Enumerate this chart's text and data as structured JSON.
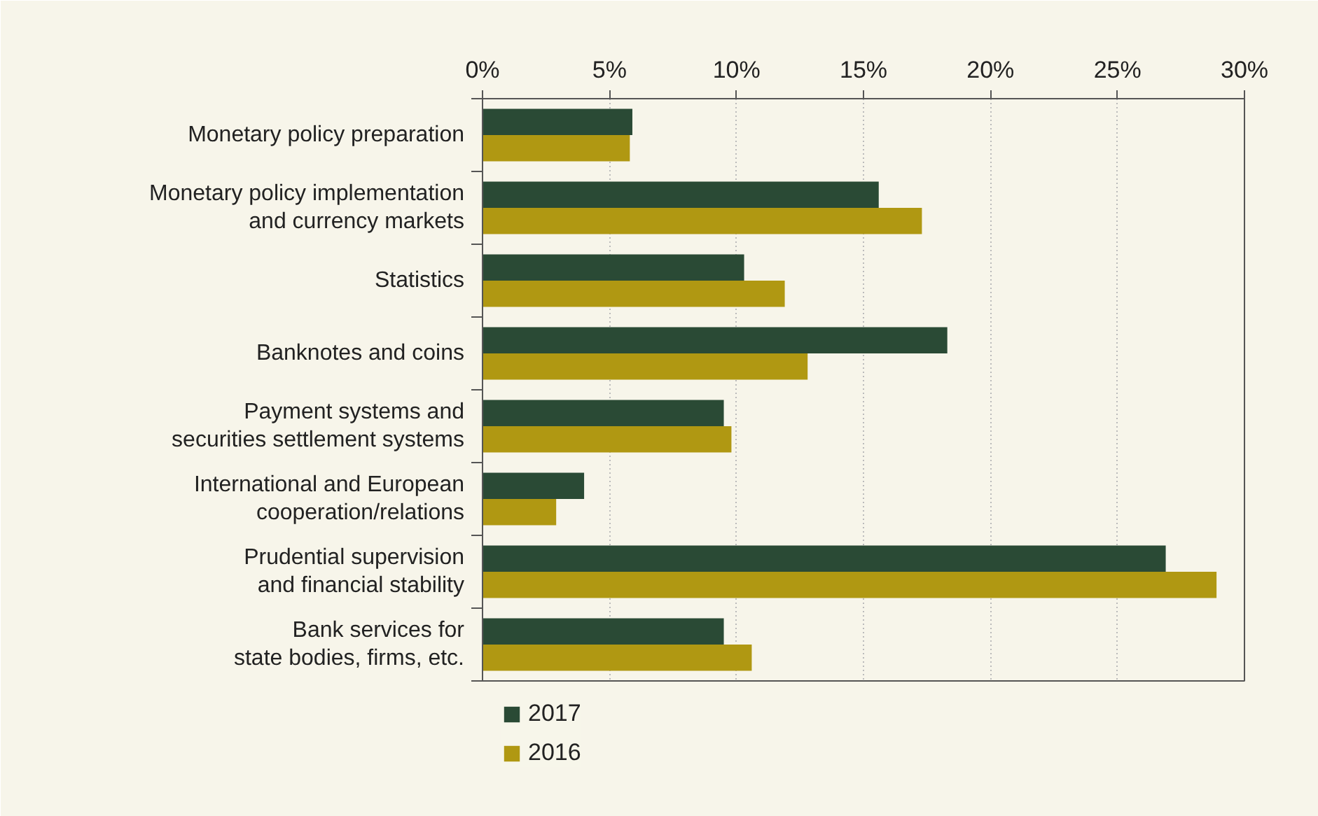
{
  "chart_data": {
    "type": "bar",
    "orientation": "horizontal",
    "categories": [
      "Monetary policy preparation",
      "Monetary policy implementation\nand currency markets",
      "Statistics",
      "Banknotes and coins",
      "Payment systems and\nsecurities settlement systems",
      "International and European\ncooperation/relations",
      "Prudential supervision\nand financial stability",
      "Bank services for\nstate bodies, firms, etc."
    ],
    "series": [
      {
        "name": "2017",
        "color": "#2a4a35",
        "values": [
          5.9,
          15.6,
          10.3,
          18.3,
          9.5,
          4.0,
          26.9,
          9.5
        ]
      },
      {
        "name": "2016",
        "color": "#b09812",
        "values": [
          5.8,
          17.3,
          11.9,
          12.8,
          9.8,
          2.9,
          28.9,
          10.6
        ]
      }
    ],
    "xlim": [
      0,
      30
    ],
    "xticks": [
      {
        "value": 0,
        "label": "0%"
      },
      {
        "value": 5,
        "label": "5%"
      },
      {
        "value": 10,
        "label": "10%"
      },
      {
        "value": 15,
        "label": "15%"
      },
      {
        "value": 20,
        "label": "20%"
      },
      {
        "value": 25,
        "label": "25%"
      },
      {
        "value": 30,
        "label": "30%"
      }
    ],
    "grid": "x",
    "legend": "bottom"
  }
}
